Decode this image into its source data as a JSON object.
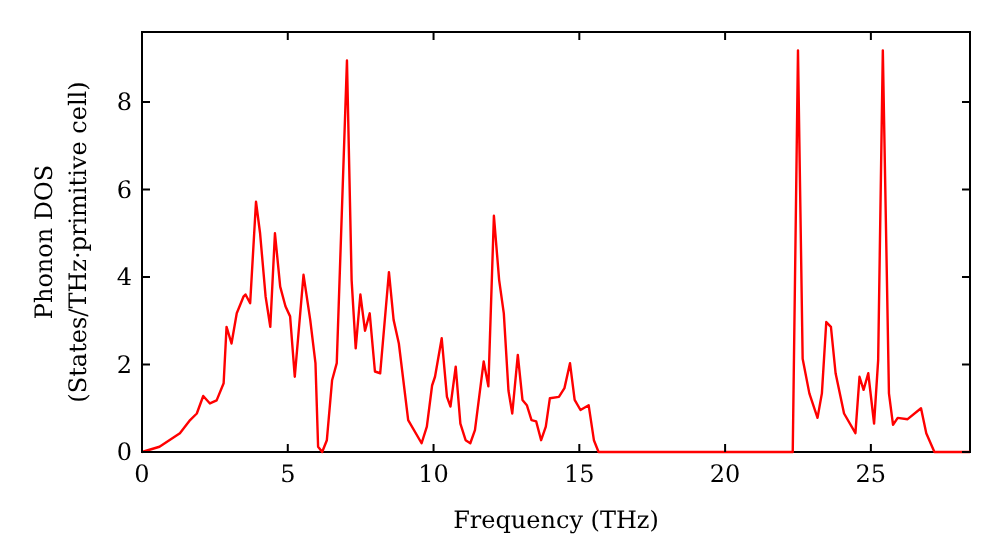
{
  "chart_data": {
    "type": "line",
    "xlabel": "Frequency (THz)",
    "ylabel": "Phonon DOS\n(States/THz·primitive cell)",
    "xlim": [
      0,
      28.4
    ],
    "ylim": [
      0,
      9.6
    ],
    "xticks": [
      0,
      5,
      10,
      15,
      20,
      25
    ],
    "yticks": [
      0,
      2,
      4,
      6,
      8
    ],
    "grid": false,
    "marker": "none",
    "line_style": "solid",
    "series": [
      {
        "color": "#ff0000",
        "x": [
          0,
          0.6,
          1.3,
          1.65,
          1.88,
          2.1,
          2.33,
          2.56,
          2.8,
          2.9,
          3.07,
          3.25,
          3.48,
          3.55,
          3.71,
          3.91,
          4.05,
          4.24,
          4.4,
          4.56,
          4.74,
          4.92,
          5.08,
          5.24,
          5.54,
          5.77,
          5.95,
          6.04,
          6.18,
          6.34,
          6.52,
          6.68,
          7.03,
          7.19,
          7.33,
          7.49,
          7.65,
          7.81,
          7.99,
          8.17,
          8.47,
          8.63,
          8.81,
          9.13,
          9.59,
          9.77,
          9.95,
          10.05,
          10.28,
          10.46,
          10.58,
          10.76,
          10.92,
          11.1,
          11.26,
          11.42,
          11.72,
          11.88,
          12.07,
          12.25,
          12.41,
          12.57,
          12.7,
          12.89,
          13.05,
          13.2,
          13.36,
          13.52,
          13.69,
          13.85,
          13.99,
          14.3,
          14.49,
          14.68,
          14.84,
          15.04,
          15.32,
          15.5,
          15.66,
          22.32,
          22.5,
          22.66,
          22.89,
          23.17,
          23.32,
          23.47,
          23.63,
          23.79,
          24.08,
          24.47,
          24.61,
          24.75,
          24.91,
          25.11,
          25.25,
          25.41,
          25.62,
          25.76,
          25.92,
          26.26,
          26.72,
          26.9,
          27.18,
          28.4
        ],
        "values": [
          0,
          0.12,
          0.43,
          0.73,
          0.88,
          1.28,
          1.11,
          1.18,
          1.57,
          2.86,
          2.48,
          3.17,
          3.55,
          3.6,
          3.4,
          5.72,
          5.0,
          3.55,
          2.86,
          5.0,
          3.78,
          3.33,
          3.1,
          1.72,
          4.05,
          3.02,
          2.03,
          0.12,
          0,
          0.27,
          1.64,
          2.03,
          8.95,
          3.93,
          2.37,
          3.6,
          2.77,
          3.17,
          1.84,
          1.8,
          4.11,
          3.02,
          2.48,
          0.73,
          0.2,
          0.58,
          1.52,
          1.72,
          2.6,
          1.26,
          1.04,
          1.95,
          0.65,
          0.27,
          0.2,
          0.5,
          2.07,
          1.5,
          5.4,
          3.93,
          3.17,
          1.4,
          0.88,
          2.22,
          1.19,
          1.07,
          0.73,
          0.7,
          0.27,
          0.58,
          1.23,
          1.26,
          1.46,
          2.03,
          1.19,
          0.96,
          1.07,
          0.27,
          0,
          0,
          9.18,
          2.13,
          1.34,
          0.78,
          1.34,
          2.97,
          2.86,
          1.8,
          0.88,
          0.43,
          1.72,
          1.42,
          1.8,
          0.65,
          2.1,
          9.18,
          1.34,
          0.62,
          0.78,
          0.75,
          1.0,
          0.43,
          0,
          0
        ]
      }
    ]
  }
}
